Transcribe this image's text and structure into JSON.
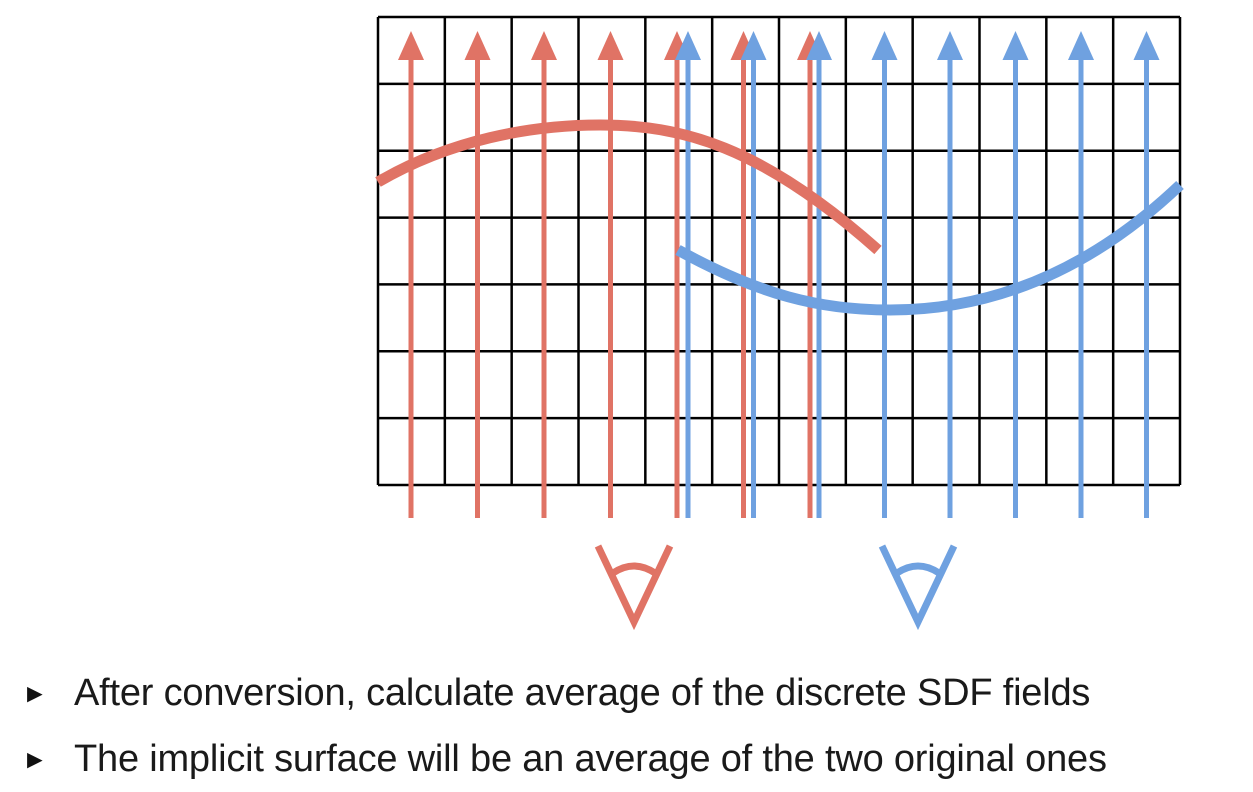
{
  "colors": {
    "grid": "#000000",
    "red": "#e07365",
    "blue": "#6fa1e0",
    "text": "#1a1a1a"
  },
  "grid": {
    "columns": 12,
    "rows": 7
  },
  "red_view": {
    "ray_count": 7,
    "eye_icon": "eye-icon"
  },
  "blue_view": {
    "ray_count": 8,
    "eye_icon": "eye-icon"
  },
  "bullets": [
    {
      "marker": "►",
      "text": "After conversion, calculate average of the discrete SDF fields"
    },
    {
      "marker": "►",
      "text": "The implicit surface will be an average of the two original ones"
    }
  ]
}
